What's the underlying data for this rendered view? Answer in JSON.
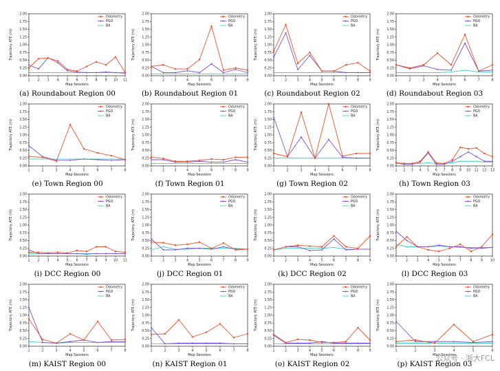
{
  "legend_names": [
    "Odometry",
    "PGO",
    "BA"
  ],
  "colors": {
    "Odometry": "#f0522a",
    "PGO": "#7a4fd6",
    "BA": "#38d0b6"
  },
  "y_ticks": [
    "0.00",
    "0.25",
    "0.50",
    "0.75",
    "1.00",
    "1.25",
    "1.50",
    "1.75",
    "2.00"
  ],
  "ylabel": "Trajectory ATE (m)",
  "xlabel": "Map Sessions",
  "watermark": "公众号 · 浙大FCL",
  "chart_data": [
    {
      "type": "line",
      "caption": "(a) Roundabout Region 00",
      "ylim": [
        0,
        2
      ],
      "x": [
        1,
        2,
        3,
        4,
        5,
        6,
        7,
        8,
        9,
        10,
        11
      ],
      "series": [
        {
          "name": "Odometry",
          "values": [
            0.25,
            0.55,
            0.57,
            0.48,
            0.2,
            0.15,
            0.3,
            0.45,
            0.35,
            0.6,
            0.1
          ]
        },
        {
          "name": "PGO",
          "values": [
            0.35,
            0.22,
            0.58,
            0.42,
            0.16,
            0.12,
            0.1,
            0.1,
            0.12,
            0.1,
            0.08
          ]
        },
        {
          "name": "BA",
          "values": [
            0.1,
            0.1,
            0.1,
            0.1,
            0.1,
            0.1,
            0.1,
            0.1,
            0.1,
            0.1,
            0.1
          ]
        }
      ]
    },
    {
      "type": "line",
      "caption": "(b) Roundabout Region 01",
      "ylim": [
        0,
        2
      ],
      "x": [
        1,
        2,
        3,
        4,
        5,
        6,
        7,
        8,
        9
      ],
      "series": [
        {
          "name": "Odometry",
          "values": [
            0.3,
            0.35,
            0.22,
            0.22,
            0.52,
            1.6,
            0.18,
            0.25,
            0.18
          ]
        },
        {
          "name": "PGO",
          "values": [
            0.3,
            0.1,
            0.1,
            0.16,
            0.1,
            0.38,
            0.1,
            0.2,
            0.1
          ]
        },
        {
          "name": "BA",
          "values": [
            0.06,
            0.06,
            0.06,
            0.06,
            0.06,
            0.06,
            0.06,
            0.06,
            0.06
          ]
        }
      ]
    },
    {
      "type": "line",
      "caption": "(c) Roundabout Region 02",
      "ylim": [
        0,
        2
      ],
      "x": [
        1,
        2,
        3,
        4,
        5,
        6,
        7,
        8,
        9
      ],
      "series": [
        {
          "name": "Odometry",
          "values": [
            0.8,
            1.65,
            0.4,
            0.75,
            0.15,
            0.15,
            0.35,
            0.42,
            0.15
          ]
        },
        {
          "name": "PGO",
          "values": [
            0.6,
            1.38,
            0.2,
            0.65,
            0.15,
            0.15,
            0.1,
            0.1,
            0.1
          ]
        },
        {
          "name": "BA",
          "values": [
            0.1,
            0.1,
            0.1,
            0.1,
            0.1,
            0.1,
            0.1,
            0.1,
            0.1
          ]
        }
      ]
    },
    {
      "type": "line",
      "caption": "(d) Roundabout Region 03",
      "ylim": [
        0,
        2
      ],
      "x": [
        1,
        2,
        3,
        4,
        5,
        6,
        7,
        8
      ],
      "series": [
        {
          "name": "Odometry",
          "values": [
            0.35,
            0.25,
            0.35,
            0.73,
            0.35,
            1.33,
            0.15,
            0.35
          ]
        },
        {
          "name": "PGO",
          "values": [
            0.35,
            0.22,
            0.32,
            0.2,
            0.18,
            1.05,
            0.15,
            0.18
          ]
        },
        {
          "name": "BA",
          "values": [
            0.1,
            0.1,
            0.1,
            0.1,
            0.12,
            0.18,
            0.12,
            0.12
          ]
        }
      ]
    },
    {
      "type": "line",
      "caption": "(e) Town Region 00",
      "ylim": [
        0,
        2
      ],
      "x": [
        1,
        2,
        3,
        4,
        5,
        6,
        7,
        8
      ],
      "series": [
        {
          "name": "Odometry",
          "values": [
            0.3,
            0.28,
            0.15,
            1.33,
            0.55,
            0.42,
            0.33,
            0.2
          ]
        },
        {
          "name": "PGO",
          "values": [
            0.65,
            0.3,
            0.18,
            0.18,
            0.22,
            0.2,
            0.18,
            0.2
          ]
        },
        {
          "name": "BA",
          "values": [
            0.22,
            0.22,
            0.22,
            0.22,
            0.22,
            0.22,
            0.22,
            0.22
          ]
        }
      ]
    },
    {
      "type": "line",
      "caption": "(f) Town Region 01",
      "ylim": [
        0,
        2
      ],
      "x": [
        1,
        2,
        3,
        4,
        5,
        6,
        7,
        8,
        9
      ],
      "series": [
        {
          "name": "Odometry",
          "values": [
            0.28,
            0.24,
            0.15,
            0.15,
            0.18,
            0.22,
            0.2,
            0.28,
            0.28
          ]
        },
        {
          "name": "PGO",
          "values": [
            0.2,
            0.2,
            0.12,
            0.12,
            0.15,
            0.12,
            0.12,
            0.2,
            0.12
          ]
        },
        {
          "name": "BA",
          "values": [
            0.08,
            0.08,
            0.08,
            0.08,
            0.08,
            0.08,
            0.08,
            0.08,
            0.08
          ]
        }
      ]
    },
    {
      "type": "line",
      "caption": "(g) Town Region 02",
      "ylim": [
        0,
        2
      ],
      "x": [
        1,
        2,
        3,
        4,
        5,
        6,
        7,
        8
      ],
      "series": [
        {
          "name": "Odometry",
          "values": [
            0.4,
            0.3,
            1.73,
            0.25,
            2.0,
            0.32,
            0.4,
            0.4
          ]
        },
        {
          "name": "PGO",
          "values": [
            1.57,
            0.3,
            0.93,
            0.25,
            0.85,
            0.28,
            0.25,
            0.25
          ]
        },
        {
          "name": "BA",
          "values": [
            0.25,
            0.25,
            0.25,
            0.25,
            0.25,
            0.25,
            0.25,
            0.25
          ]
        }
      ]
    },
    {
      "type": "line",
      "caption": "(h) Town Region 03",
      "ylim": [
        0,
        2
      ],
      "x": [
        1,
        2,
        3,
        4,
        5,
        6,
        7,
        8,
        9,
        10,
        11,
        12,
        13
      ],
      "series": [
        {
          "name": "Odometry",
          "values": [
            0.1,
            0.08,
            0.08,
            0.15,
            0.45,
            0.1,
            0.08,
            0.2,
            0.6,
            0.55,
            0.58,
            0.4,
            0.3
          ]
        },
        {
          "name": "PGO",
          "values": [
            0.1,
            0.05,
            0.05,
            0.12,
            0.42,
            0.05,
            0.05,
            0.15,
            0.3,
            0.45,
            0.3,
            0.15,
            0.15
          ]
        },
        {
          "name": "BA",
          "values": [
            0.08,
            0.08,
            0.08,
            0.08,
            0.1,
            0.08,
            0.08,
            0.1,
            0.15,
            0.15,
            0.15,
            0.12,
            0.12
          ]
        }
      ]
    },
    {
      "type": "line",
      "caption": "(i) DCC Region 00",
      "ylim": [
        0,
        2
      ],
      "x": [
        1,
        2,
        3,
        4,
        5,
        6,
        7,
        8,
        9,
        10,
        11
      ],
      "series": [
        {
          "name": "Odometry",
          "values": [
            0.12,
            0.12,
            0.1,
            0.12,
            0.1,
            0.18,
            0.15,
            0.3,
            0.3,
            0.15,
            0.12
          ]
        },
        {
          "name": "PGO",
          "values": [
            0.2,
            0.08,
            0.08,
            0.08,
            0.08,
            0.08,
            0.06,
            0.08,
            0.08,
            0.08,
            0.08
          ]
        },
        {
          "name": "BA",
          "values": [
            0.08,
            0.08,
            0.08,
            0.08,
            0.08,
            0.08,
            0.08,
            0.08,
            0.08,
            0.08,
            0.08
          ]
        }
      ]
    },
    {
      "type": "line",
      "caption": "(j) DCC Region 01",
      "ylim": [
        0,
        2
      ],
      "x": [
        1,
        2,
        3,
        4,
        5,
        6,
        7,
        8,
        9
      ],
      "series": [
        {
          "name": "Odometry",
          "values": [
            0.45,
            0.43,
            0.35,
            0.38,
            0.45,
            0.25,
            0.42,
            0.2,
            0.22
          ]
        },
        {
          "name": "PGO",
          "values": [
            0.55,
            0.2,
            0.2,
            0.25,
            0.25,
            0.22,
            0.3,
            0.22,
            0.22
          ]
        },
        {
          "name": "BA",
          "values": [
            0.2,
            0.3,
            0.22,
            0.22,
            0.25,
            0.25,
            0.25,
            0.25,
            0.22
          ]
        }
      ]
    },
    {
      "type": "line",
      "caption": "(k) DCC Region 02",
      "ylim": [
        0,
        2
      ],
      "x": [
        1,
        2,
        3,
        4,
        5,
        6,
        7,
        8,
        9
      ],
      "series": [
        {
          "name": "Odometry",
          "values": [
            0.2,
            0.3,
            0.35,
            0.32,
            0.3,
            0.65,
            0.3,
            0.25,
            0.65
          ]
        },
        {
          "name": "PGO",
          "values": [
            0.2,
            0.3,
            0.3,
            0.18,
            0.2,
            0.55,
            0.2,
            0.22,
            0.22
          ]
        },
        {
          "name": "BA",
          "values": [
            0.2,
            0.25,
            0.25,
            0.25,
            0.25,
            0.28,
            0.22,
            0.22,
            0.22
          ]
        }
      ]
    },
    {
      "type": "line",
      "caption": "(l) DCC Region 03",
      "ylim": [
        0,
        2
      ],
      "x": [
        1,
        2,
        3,
        4,
        5,
        6,
        7,
        8,
        9,
        10
      ],
      "series": [
        {
          "name": "Odometry",
          "values": [
            0.3,
            0.62,
            0.3,
            0.2,
            0.15,
            0.25,
            0.38,
            0.15,
            0.3,
            0.7
          ]
        },
        {
          "name": "PGO",
          "values": [
            0.8,
            0.5,
            0.3,
            0.3,
            0.35,
            0.3,
            0.3,
            0.25,
            0.25,
            0.28
          ]
        },
        {
          "name": "BA",
          "values": [
            0.38,
            0.3,
            0.3,
            0.3,
            0.32,
            0.3,
            0.28,
            0.28,
            0.28,
            0.28
          ]
        }
      ]
    },
    {
      "type": "line",
      "caption": "(m) KAIST Region 00",
      "ylim": [
        0,
        2
      ],
      "x": [
        1,
        2,
        3,
        4,
        5,
        6,
        7,
        8
      ],
      "series": [
        {
          "name": "Odometry",
          "values": [
            0.88,
            0.22,
            0.1,
            0.4,
            0.2,
            0.8,
            0.2,
            0.22
          ]
        },
        {
          "name": "PGO",
          "values": [
            1.25,
            0.12,
            0.1,
            0.15,
            0.2,
            0.12,
            0.15,
            0.15
          ]
        },
        {
          "name": "BA",
          "values": [
            0.15,
            0.12,
            0.1,
            0.12,
            0.12,
            0.12,
            0.12,
            0.12
          ]
        }
      ]
    },
    {
      "type": "line",
      "caption": "(n) KAIST Region 01",
      "ylim": [
        0,
        2
      ],
      "x": [
        1,
        2,
        3,
        4,
        5,
        6,
        7,
        8
      ],
      "series": [
        {
          "name": "Odometry",
          "values": [
            0.38,
            0.4,
            0.85,
            0.3,
            0.45,
            0.72,
            0.28,
            0.4
          ]
        },
        {
          "name": "PGO",
          "values": [
            0.6,
            0.08,
            0.1,
            0.1,
            0.1,
            0.1,
            0.08,
            0.08
          ]
        },
        {
          "name": "BA",
          "values": [
            0.08,
            0.08,
            0.08,
            0.08,
            0.08,
            0.08,
            0.08,
            0.08
          ]
        }
      ]
    },
    {
      "type": "line",
      "caption": "(o) KAIST Region 02",
      "ylim": [
        0,
        2
      ],
      "x": [
        1,
        2,
        3,
        4,
        5,
        6,
        7,
        8,
        9
      ],
      "series": [
        {
          "name": "Odometry",
          "values": [
            0.38,
            0.12,
            0.22,
            0.2,
            0.12,
            0.12,
            0.15,
            0.6,
            0.2
          ]
        },
        {
          "name": "PGO",
          "values": [
            0.35,
            0.1,
            0.1,
            0.1,
            0.15,
            0.1,
            0.1,
            0.1,
            0.1
          ]
        },
        {
          "name": "BA",
          "values": [
            0.08,
            0.08,
            0.08,
            0.08,
            0.08,
            0.08,
            0.08,
            0.08,
            0.08
          ]
        }
      ]
    },
    {
      "type": "line",
      "caption": "(p) KAIST Region 03",
      "ylim": [
        0,
        2
      ],
      "x": [
        1,
        2,
        3,
        4,
        5,
        6
      ],
      "series": [
        {
          "name": "Odometry",
          "values": [
            0.15,
            0.2,
            0.1,
            0.7,
            0.15,
            0.38
          ]
        },
        {
          "name": "PGO",
          "values": [
            0.8,
            0.15,
            0.15,
            0.15,
            0.12,
            0.15
          ]
        },
        {
          "name": "BA",
          "values": [
            0.1,
            0.1,
            0.1,
            0.1,
            0.1,
            0.1
          ]
        }
      ]
    }
  ]
}
